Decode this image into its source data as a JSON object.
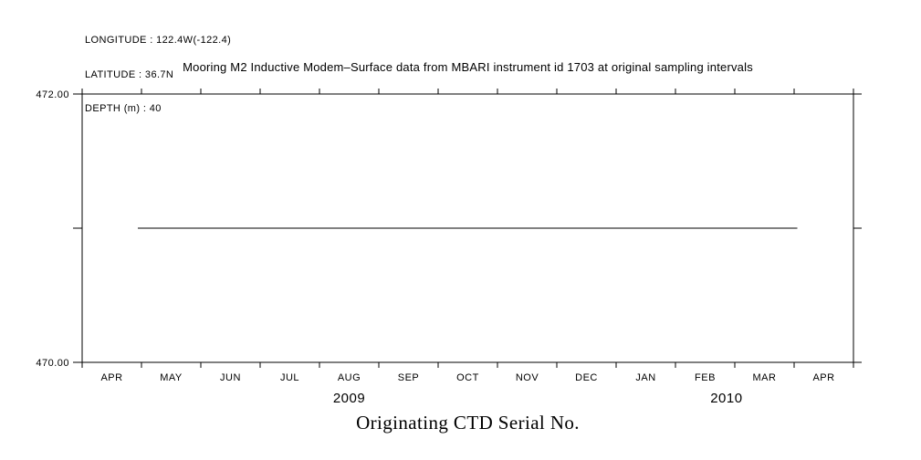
{
  "page": {
    "background_color": "#ffffff",
    "ink_color": "#000000"
  },
  "header_info": {
    "longitude": "LONGITUDE : 122.4W(-122.4)",
    "latitude": "LATITUDE : 36.7N",
    "depth": "DEPTH (m) : 40"
  },
  "chart_data": {
    "type": "line",
    "title": "Mooring M2 Inductive Modem–Surface data from MBARI instrument id 1703 at original sampling intervals",
    "bottom_label": "Originating CTD Serial No.",
    "ylim": [
      470.0,
      472.0
    ],
    "yticks": [
      {
        "value": 470.0,
        "label": "470.00"
      },
      {
        "value": 471.0,
        "label": ""
      },
      {
        "value": 472.0,
        "label": "472.00"
      }
    ],
    "x_tick_labels": [
      "APR",
      "MAY",
      "JUN",
      "JUL",
      "AUG",
      "SEP",
      "OCT",
      "NOV",
      "DEC",
      "JAN",
      "FEB",
      "MAR",
      "APR"
    ],
    "x_axis_note": "months spanning APR 2009 through APR 2010, ticks at month boundaries",
    "year_labels": [
      {
        "text": "2009",
        "month_offset": 4.5
      },
      {
        "text": "2010",
        "month_offset": 10.86
      }
    ],
    "grid": "off",
    "legend": "none",
    "series": [
      {
        "name": "Originating CTD Serial No.",
        "value": 471.0,
        "x_start_month": 0.94,
        "x_end_month": 12.05,
        "shape": "constant horizontal line"
      }
    ]
  }
}
